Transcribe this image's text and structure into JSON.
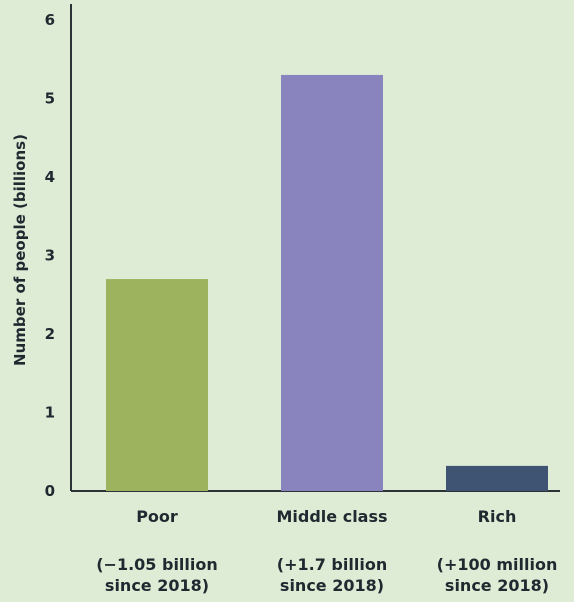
{
  "chart_data": {
    "type": "bar",
    "title": "",
    "xlabel": "",
    "ylabel": "Number of people (billions)",
    "ylim": [
      0,
      6
    ],
    "yticks": [
      0,
      1,
      2,
      3,
      4,
      5,
      6
    ],
    "grid": false,
    "legend": "none",
    "categories": [
      "Poor",
      "Middle class",
      "Rich"
    ],
    "values": [
      2.7,
      5.3,
      0.32
    ],
    "annotations": [
      [
        "(−1.05 billion",
        "since 2018)"
      ],
      [
        "(+1.7 billion",
        "since 2018)"
      ],
      [
        "(+100 million",
        "since 2018)"
      ]
    ],
    "colors": [
      "#9db35e",
      "#8a84be",
      "#3f5373"
    ],
    "axis_color": "#2b3238",
    "background": "#deecd6"
  }
}
